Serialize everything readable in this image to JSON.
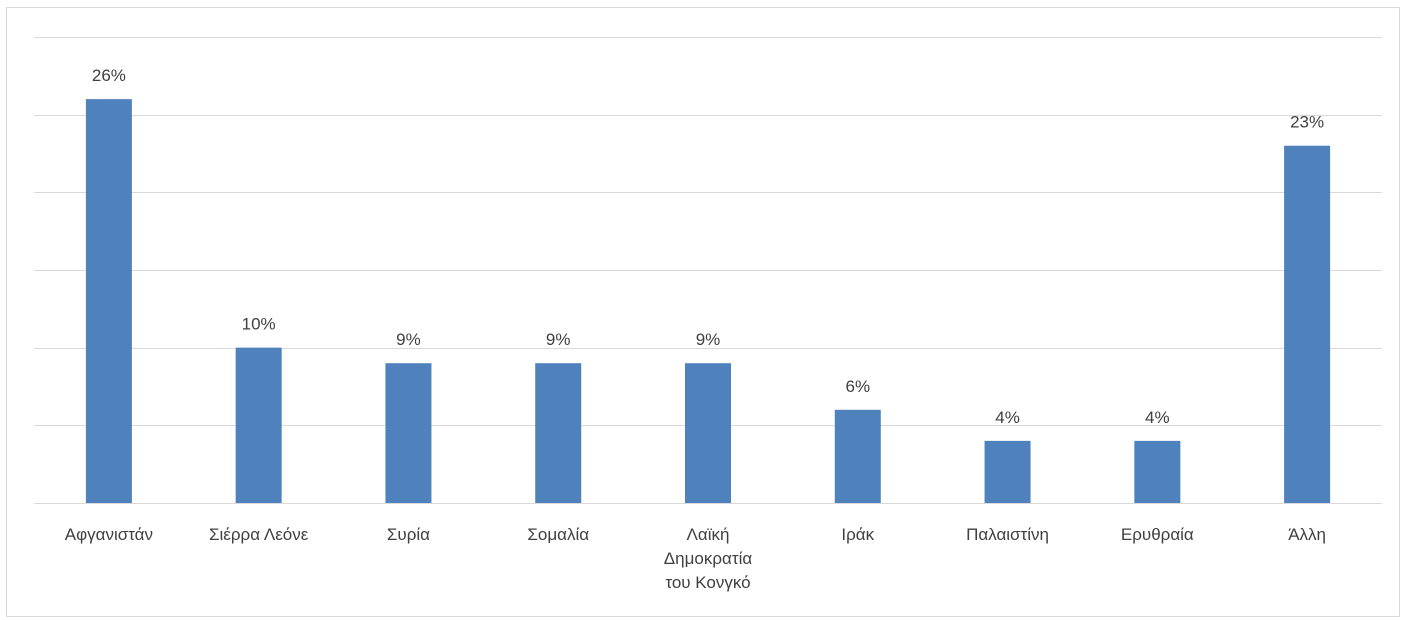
{
  "chart_data": {
    "type": "bar",
    "categories": [
      [
        "Αφγανιστάν"
      ],
      [
        "Σιέρρα Λεόνε"
      ],
      [
        "Συρία"
      ],
      [
        "Σομαλία"
      ],
      [
        "Λαϊκή",
        "Δημοκρατία",
        "του Κονγκό"
      ],
      [
        "Ιράκ"
      ],
      [
        "Παλαιστίνη"
      ],
      [
        "Ερυθραία"
      ],
      [
        "Άλλη"
      ]
    ],
    "values": [
      26,
      10,
      9,
      9,
      9,
      6,
      4,
      4,
      23
    ],
    "data_labels": [
      "26%",
      "10%",
      "9%",
      "9%",
      "9%",
      "6%",
      "4%",
      "4%",
      "23%"
    ],
    "unit": "%",
    "ylim": [
      0,
      30
    ],
    "grid_step": 5,
    "grid": true,
    "bar_color": "#4f81bd",
    "title": "",
    "xlabel": "",
    "ylabel": ""
  }
}
